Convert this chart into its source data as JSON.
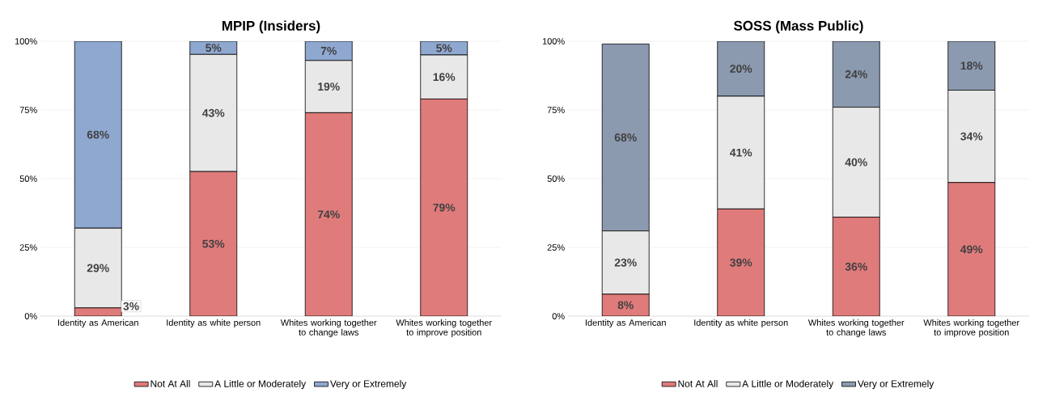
{
  "chart_data": [
    {
      "type": "bar",
      "stacked": true,
      "title": "MPIP (Insiders)",
      "categories": [
        "Identity as American",
        "Identity as white person",
        "Whites working together to change laws",
        "Whites working together to improve position"
      ],
      "series": [
        {
          "name": "Not At All",
          "color": "#e07b7b",
          "values": [
            3,
            52.6,
            74,
            79
          ],
          "value_labels": [
            "3%",
            "53%",
            "74%",
            "79%"
          ]
        },
        {
          "name": "A Little or Moderately",
          "color": "#e8e8e8",
          "values": [
            29,
            42.6,
            19,
            16
          ],
          "value_labels": [
            "29%",
            "43%",
            "19%",
            "16%"
          ]
        },
        {
          "name": "Very or Extremely",
          "color": "#8fa8d0",
          "values": [
            68,
            4.8,
            7,
            5
          ],
          "value_labels": [
            "68%",
            "5%",
            "7%",
            "5%"
          ]
        }
      ],
      "ylim": [
        0,
        100
      ],
      "yticks": [
        {
          "value": 0,
          "label": "0%"
        },
        {
          "value": 25,
          "label": "25%"
        },
        {
          "value": 50,
          "label": "50%"
        },
        {
          "value": 75,
          "label": "75%"
        },
        {
          "value": 100,
          "label": "100%"
        }
      ],
      "grid": "y",
      "legend": "bottom"
    },
    {
      "type": "bar",
      "stacked": true,
      "title": "SOSS (Mass Public)",
      "categories": [
        "Identity as American",
        "Identity as white person",
        "Whites working together to change laws",
        "Whites working together to improve position"
      ],
      "series": [
        {
          "name": "Not At All",
          "color": "#e07b7b",
          "values": [
            8,
            39,
            36,
            48.6
          ],
          "value_labels": [
            "8%",
            "39%",
            "36%",
            "49%"
          ]
        },
        {
          "name": "A Little or Moderately",
          "color": "#e8e8e8",
          "values": [
            23,
            41,
            40,
            33.6
          ],
          "value_labels": [
            "23%",
            "41%",
            "40%",
            "34%"
          ]
        },
        {
          "name": "Very or Extremely",
          "color": "#8c9ab0",
          "values": [
            68,
            20,
            24,
            17.8
          ],
          "value_labels": [
            "68%",
            "20%",
            "24%",
            "18%"
          ]
        }
      ],
      "ylim": [
        0,
        100
      ],
      "yticks": [
        {
          "value": 0,
          "label": "0%"
        },
        {
          "value": 25,
          "label": "25%"
        },
        {
          "value": 50,
          "label": "50%"
        },
        {
          "value": 75,
          "label": "75%"
        },
        {
          "value": 100,
          "label": "100%"
        }
      ],
      "grid": "y",
      "legend": "bottom"
    }
  ]
}
